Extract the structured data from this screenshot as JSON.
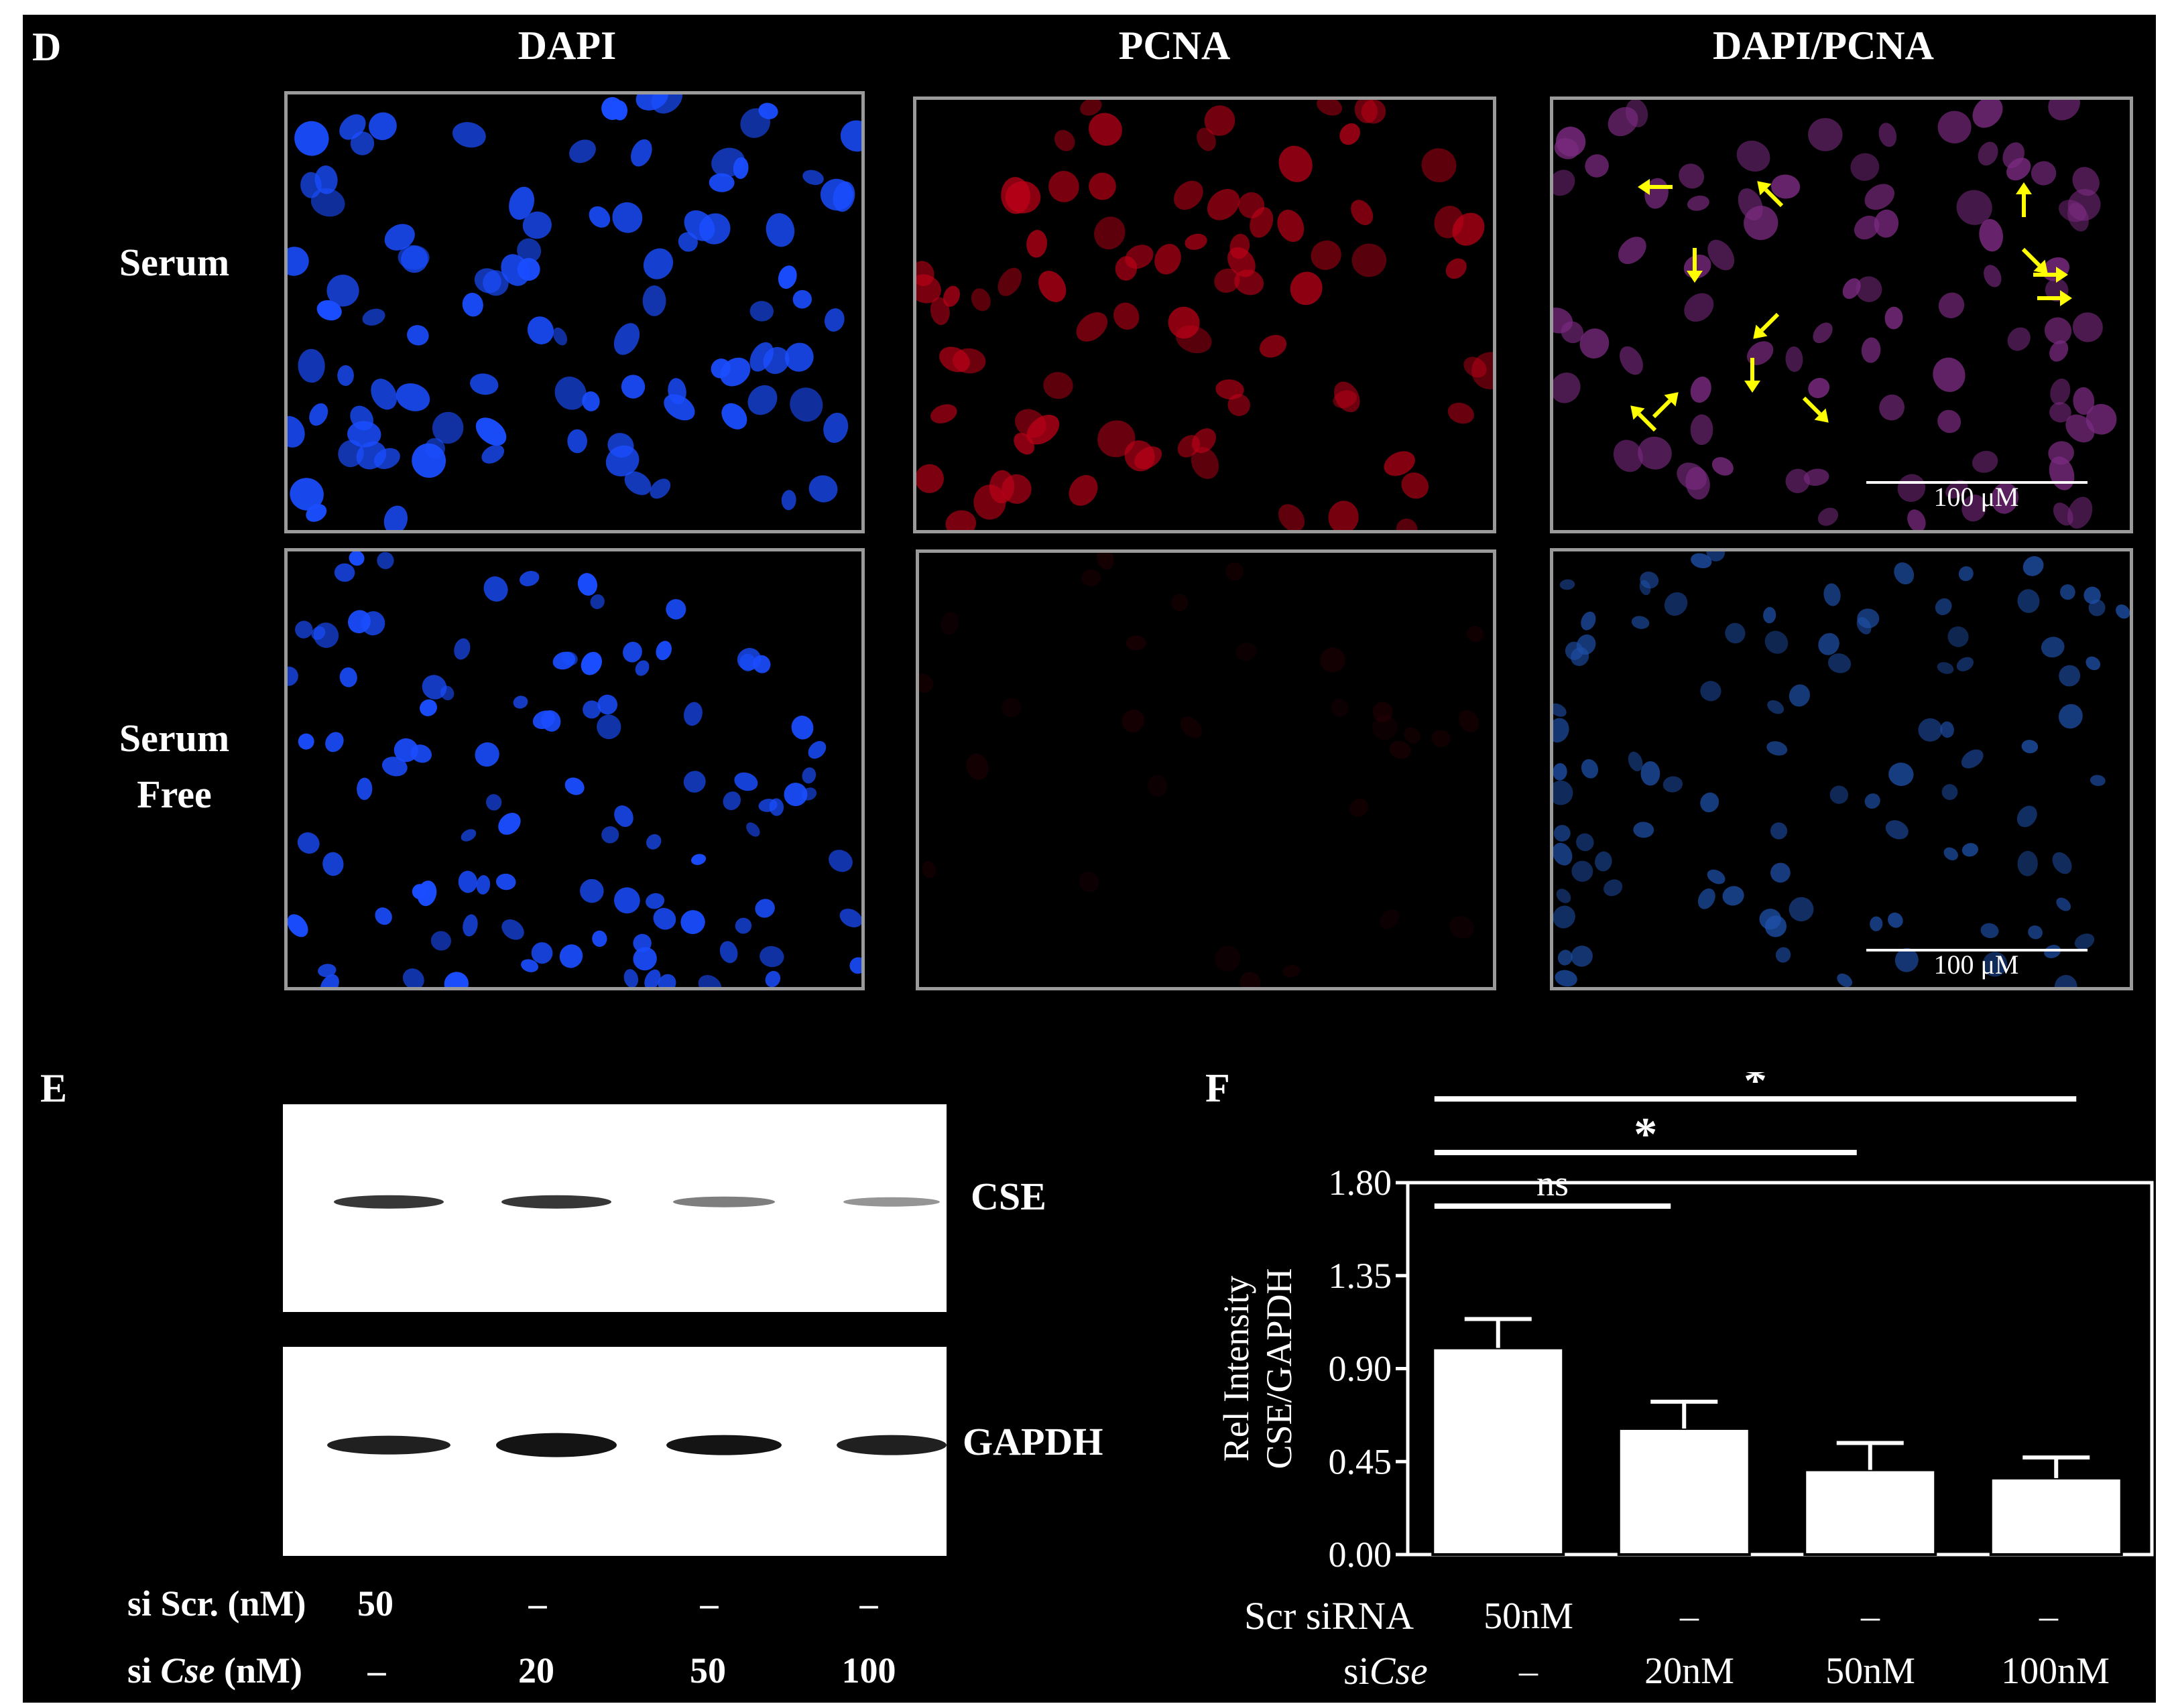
{
  "panel_d": {
    "letter": "D",
    "columns": [
      "DAPI",
      "PCNA",
      "DAPI/PCNA"
    ],
    "rows": [
      {
        "label_lines": [
          "Serum"
        ]
      },
      {
        "label_lines": [
          "Serum",
          "Free"
        ]
      }
    ],
    "scale_bar_label": "100 μM",
    "colors": {
      "dapi": "#1a4dff",
      "pcna": "#c00018",
      "merge": "#7a2a80",
      "arrow": "#ffff00",
      "border": "#9a9a9a"
    }
  },
  "panel_e": {
    "letter": "E",
    "bands": [
      "CSE",
      "GAPDH"
    ],
    "rows": [
      {
        "label_prefix": "si Scr. (nM)",
        "label_italic": "",
        "label_suffix": "",
        "values": [
          "50",
          "–",
          "–",
          "–"
        ]
      },
      {
        "label_prefix": "si ",
        "label_italic": "Cse",
        "label_suffix": " (nM)",
        "values": [
          "–",
          "20",
          "50",
          "100"
        ]
      }
    ]
  },
  "panel_f": {
    "letter": "F",
    "row_labels": [
      {
        "prefix": "Scr siRNA",
        "italic": ""
      },
      {
        "prefix": "si",
        "italic": "Cse"
      }
    ],
    "row_values": [
      [
        "50nM",
        "–",
        "–",
        "–"
      ],
      [
        "–",
        "20nM",
        "50nM",
        "100nM"
      ]
    ]
  },
  "chart_data": {
    "type": "bar",
    "ylabel_lines": [
      "Rel Intensity",
      "CSE/GAPDH"
    ],
    "ylim": [
      0,
      1.8
    ],
    "yticks": [
      "0.00",
      "0.45",
      "0.90",
      "1.35",
      "1.80"
    ],
    "values": [
      1.0,
      0.61,
      0.41,
      0.37
    ],
    "errors": [
      0.14,
      0.13,
      0.13,
      0.1
    ],
    "significance": [
      {
        "from": 0,
        "to": 1,
        "label": "ns"
      },
      {
        "from": 0,
        "to": 2,
        "label": "*"
      },
      {
        "from": 0,
        "to": 3,
        "label": "*"
      }
    ],
    "grid": false,
    "colors": {
      "bar": "#ffffff",
      "axis": "#ffffff"
    }
  }
}
